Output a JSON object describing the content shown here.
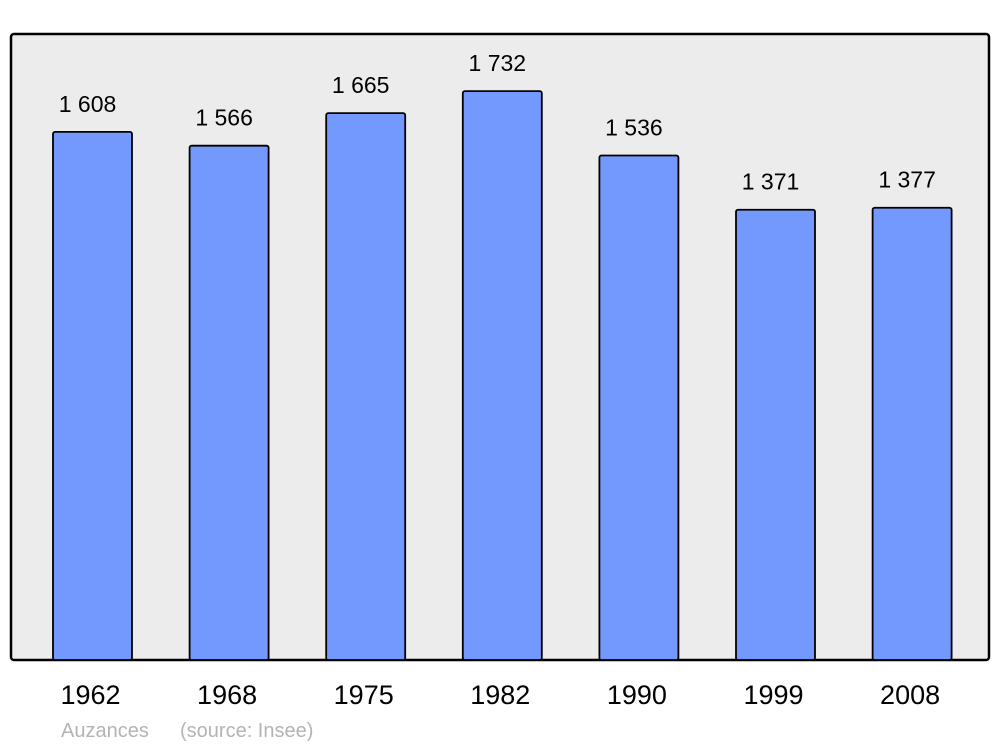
{
  "chart_data": {
    "type": "bar",
    "categories": [
      "1962",
      "1968",
      "1975",
      "1982",
      "1990",
      "1999",
      "2008"
    ],
    "values": [
      1608,
      1566,
      1665,
      1732,
      1536,
      1371,
      1377
    ],
    "data_labels": [
      "1 608",
      "1 566",
      "1 665",
      "1 732",
      "1 536",
      "1 371",
      "1 377"
    ],
    "title": "",
    "xlabel": "",
    "ylabel": "",
    "ylim": [
      0,
      1906
    ],
    "grid": false,
    "legend": "none",
    "colors": {
      "bar": "#7399ff",
      "background": "#ececec",
      "stroke": "#000000",
      "footer": "#b4b4b4"
    }
  },
  "footer": {
    "place": "Auzances",
    "source": "(source: Insee)"
  }
}
